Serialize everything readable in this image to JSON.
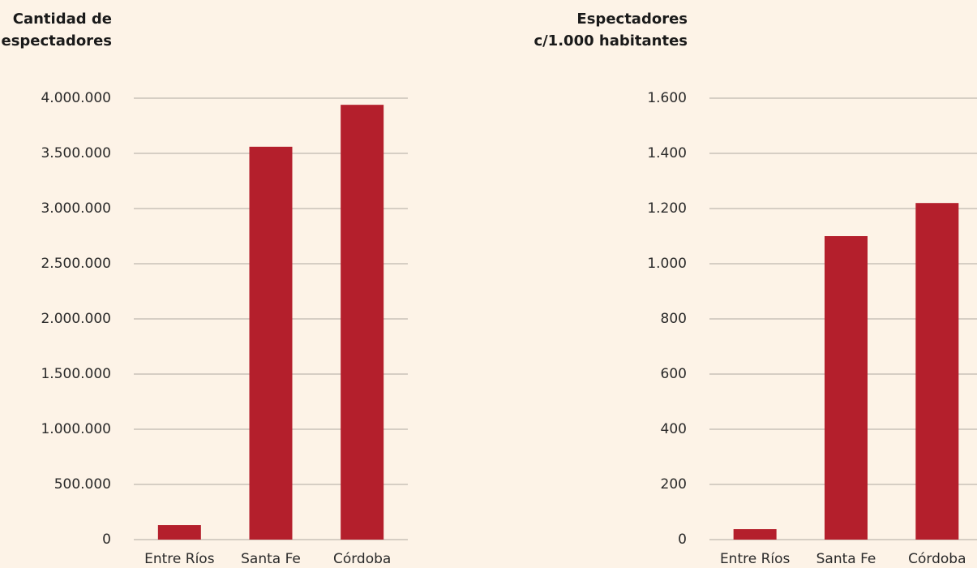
{
  "chart_data": [
    {
      "type": "bar",
      "title": "Cantidad de\nespectadores",
      "categories": [
        "Entre Ríos",
        "Santa Fe",
        "Córdoba"
      ],
      "values": [
        132000,
        3560000,
        3940000
      ],
      "color": "#b41f2c",
      "ylim": [
        0,
        4000000
      ],
      "yticks": [
        0,
        {
          "value": 500000,
          "label": "500.000"
        },
        {
          "value": 1000000,
          "label": "1.000.000"
        },
        {
          "value": 1500000,
          "label": "1.500.000"
        },
        {
          "value": 2000000,
          "label": "2.000.000"
        },
        {
          "value": 2500000,
          "label": "2.500.000"
        },
        {
          "value": 3000000,
          "label": "3.000.000"
        },
        {
          "value": 3500000,
          "label": "3.500.000"
        },
        {
          "value": 4000000,
          "label": "4.000.000"
        }
      ],
      "grid": true
    },
    {
      "type": "bar",
      "title": "Espectadores\nc/1.000 habitantes",
      "categories": [
        "Entre Ríos",
        "Santa Fe",
        "Córdoba"
      ],
      "values": [
        38,
        1100,
        1220
      ],
      "color": "#b41f2c",
      "ylim": [
        0,
        1600
      ],
      "yticks": [
        0,
        200,
        400,
        600,
        800,
        {
          "value": 1000,
          "label": "1.000"
        },
        {
          "value": 1200,
          "label": "1.200"
        },
        {
          "value": 1400,
          "label": "1.400"
        },
        {
          "value": 1600,
          "label": "1.600"
        }
      ],
      "grid": true
    }
  ]
}
